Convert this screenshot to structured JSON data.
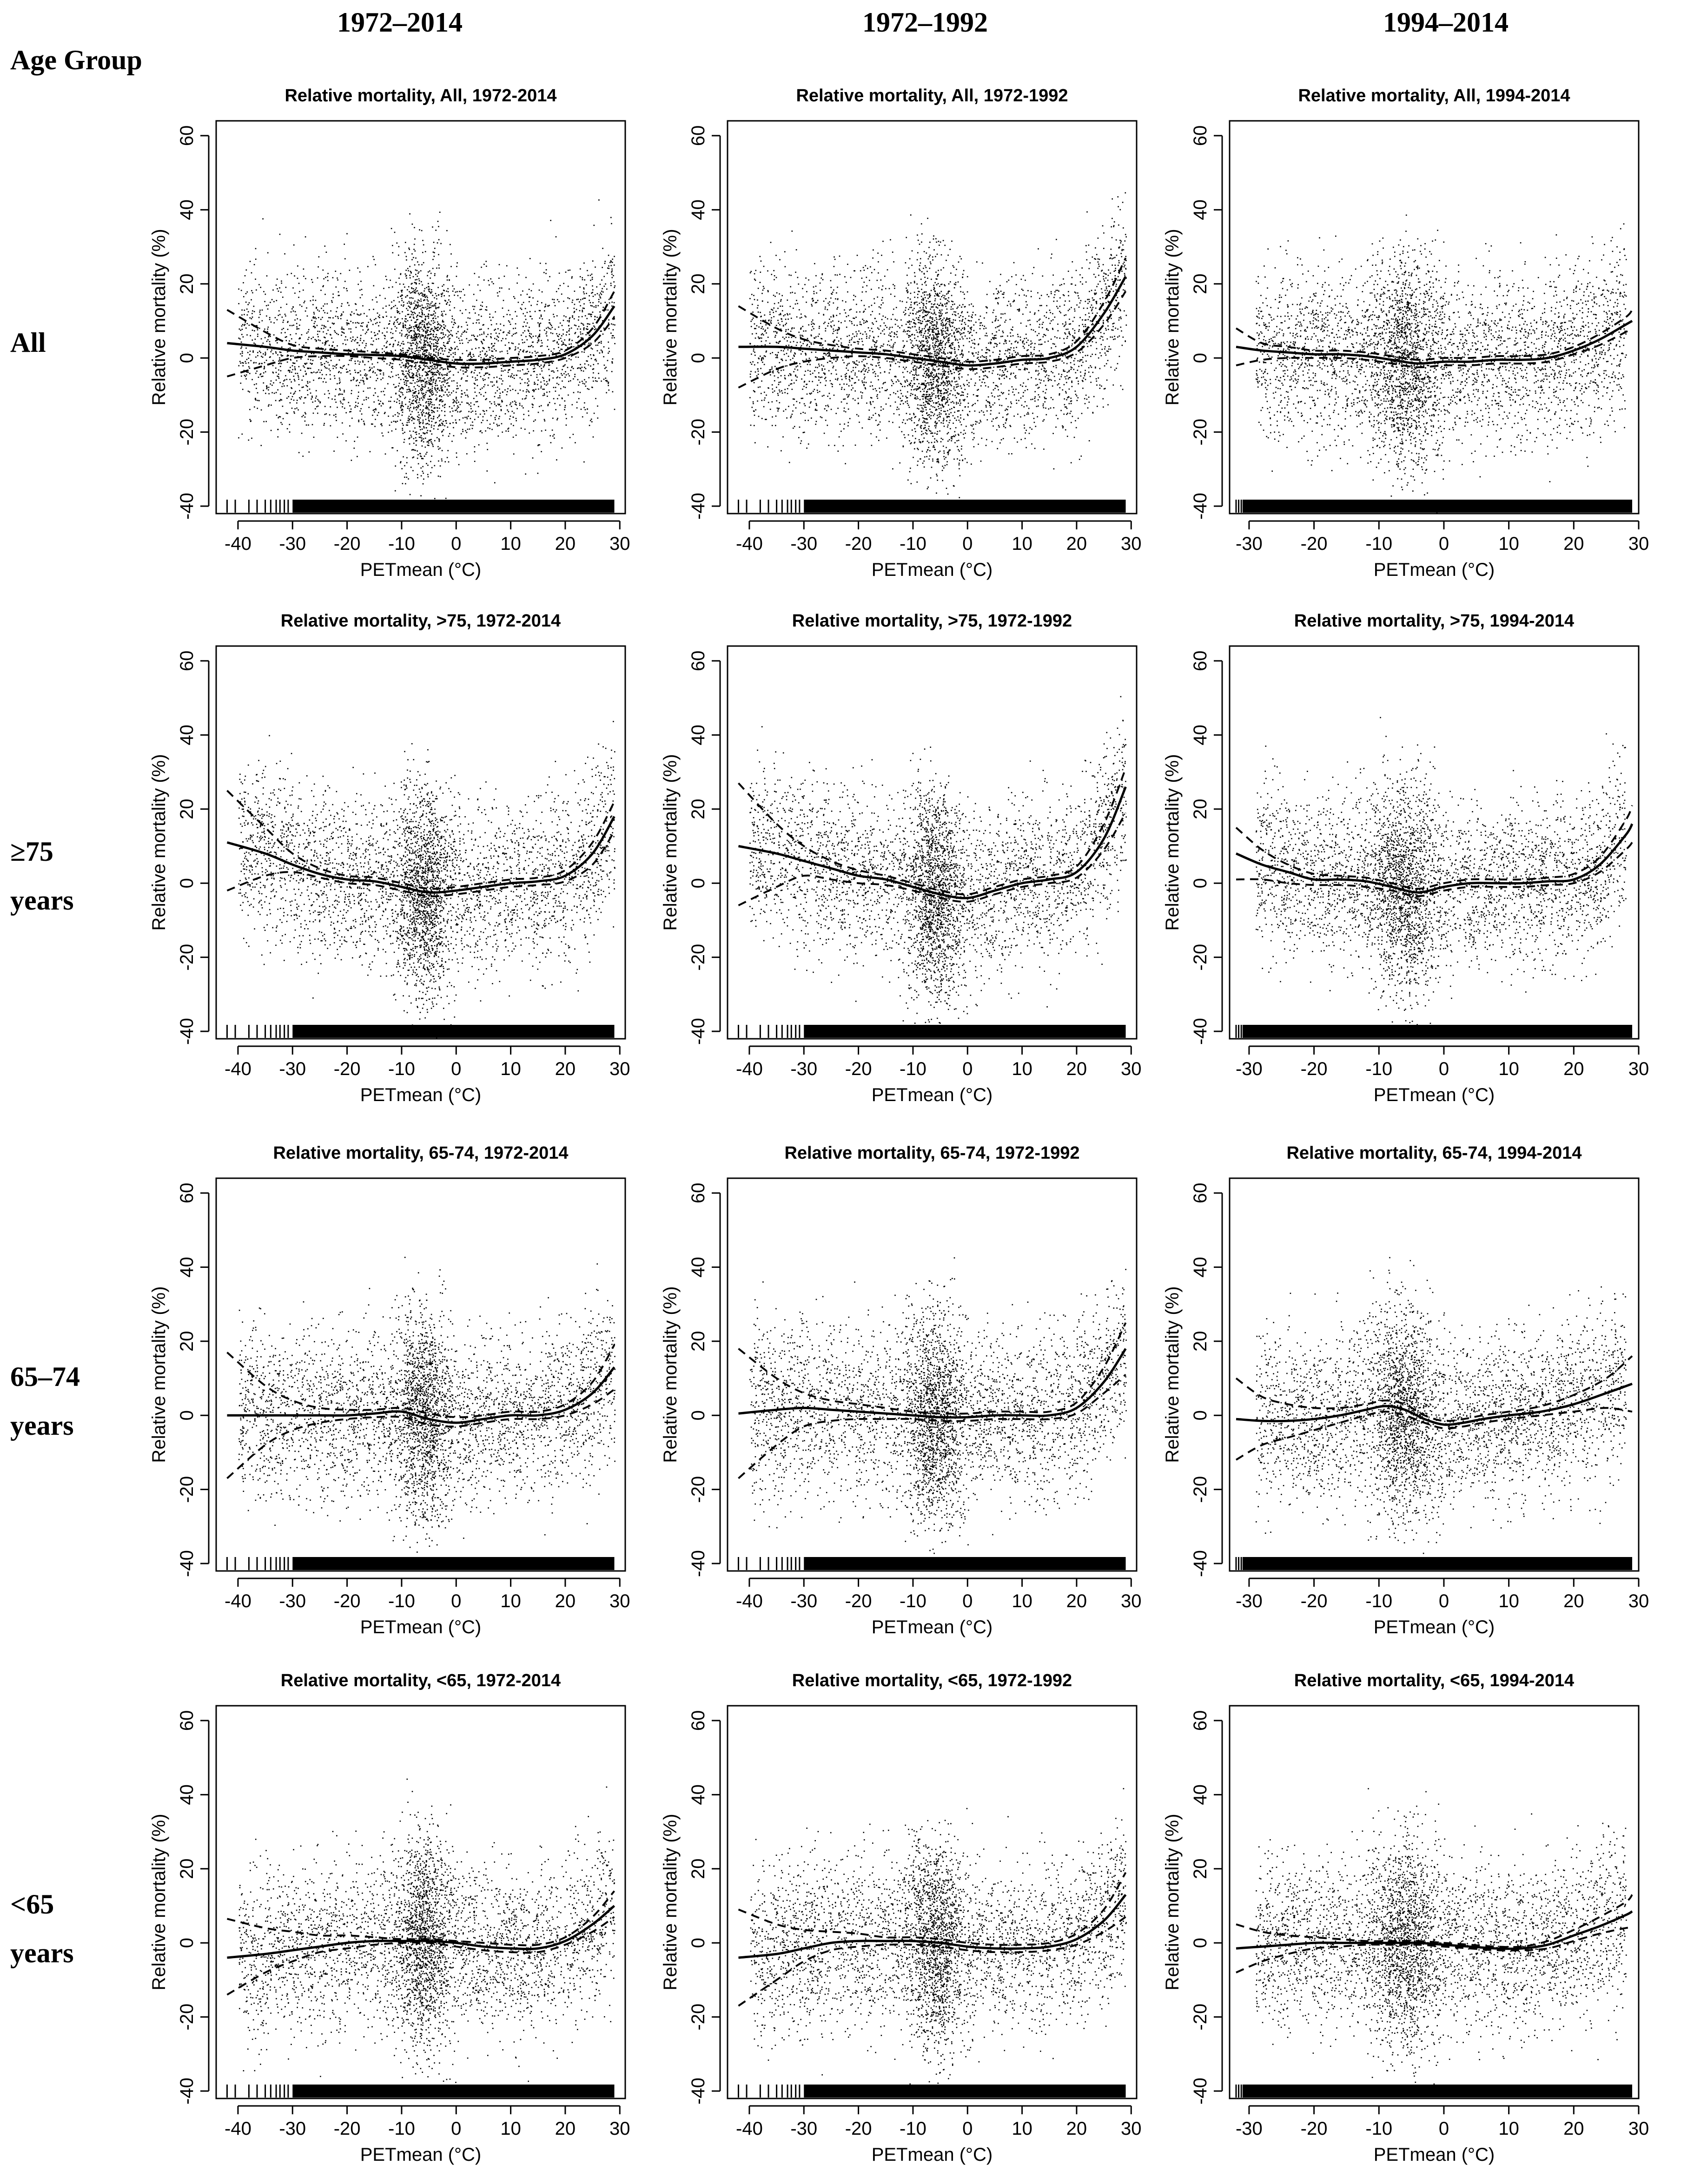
{
  "header": {
    "corner_label": "Age Group",
    "column_titles": [
      "1972–2014",
      "1972–1992",
      "1994–2014"
    ]
  },
  "row_labels": [
    [
      "All"
    ],
    [
      "≥75",
      "years"
    ],
    [
      "65–74",
      "years"
    ],
    [
      "<65",
      "years"
    ]
  ],
  "style": {
    "point_color": "#000000",
    "line_color": "#000000",
    "background": "#ffffff"
  },
  "chart_data": [
    {
      "type": "scatter",
      "title": "Relative mortality, All, 1972-2014",
      "xlabel": "PETmean (°C)",
      "ylabel": "Relative mortality (%)",
      "xlim": [
        -44,
        31
      ],
      "ylim": [
        -42,
        64
      ],
      "xticks": [
        -40,
        -30,
        -20,
        -10,
        0,
        10,
        20,
        30
      ],
      "yticks": [
        -40,
        -20,
        0,
        20,
        40,
        60
      ],
      "x": [
        -42,
        -35,
        -30,
        -25,
        -20,
        -15,
        -10,
        -5,
        0,
        5,
        10,
        15,
        20,
        25,
        29
      ],
      "fit": [
        4,
        3,
        2,
        1.5,
        1,
        0.8,
        0.5,
        -0.5,
        -1.5,
        -1.5,
        -1,
        -0.5,
        1,
        6,
        14
      ],
      "lower": [
        -5,
        -2,
        0,
        0.5,
        0.5,
        0,
        -0.5,
        -1.5,
        -2.5,
        -2.5,
        -2,
        -1.5,
        0,
        4,
        11
      ],
      "upper": [
        13,
        7,
        3.5,
        2.5,
        2,
        1.5,
        1,
        0,
        -0.5,
        -0.5,
        0,
        0.5,
        2,
        8,
        18
      ]
    },
    {
      "type": "scatter",
      "title": "Relative mortality, All, 1972-1992",
      "xlabel": "PETmean (°C)",
      "ylabel": "Relative mortality (%)",
      "xlim": [
        -44,
        31
      ],
      "ylim": [
        -42,
        64
      ],
      "xticks": [
        -40,
        -30,
        -20,
        -10,
        0,
        10,
        20,
        30
      ],
      "yticks": [
        -40,
        -20,
        0,
        20,
        40,
        60
      ],
      "x": [
        -42,
        -35,
        -30,
        -25,
        -20,
        -15,
        -10,
        -5,
        0,
        5,
        10,
        15,
        20,
        25,
        29
      ],
      "fit": [
        3,
        3,
        2.5,
        2,
        1.5,
        1,
        0,
        -1,
        -2,
        -1.5,
        -0.5,
        0,
        3,
        12,
        22
      ],
      "lower": [
        -8,
        -3,
        -1,
        0,
        0.5,
        0,
        -1,
        -2,
        -3,
        -2.5,
        -1.5,
        -1,
        1.5,
        9,
        18
      ],
      "upper": [
        14,
        8,
        5,
        3.5,
        2.5,
        2,
        1,
        0,
        -1,
        -0.5,
        0.5,
        1,
        4.5,
        15,
        27
      ]
    },
    {
      "type": "scatter",
      "title": "Relative mortality, All, 1994-2014",
      "xlabel": "PETmean (°C)",
      "ylabel": "Relative mortality (%)",
      "xlim": [
        -33,
        30
      ],
      "ylim": [
        -42,
        64
      ],
      "xticks": [
        -30,
        -20,
        -10,
        0,
        10,
        20,
        30
      ],
      "yticks": [
        -40,
        -20,
        0,
        20,
        40,
        60
      ],
      "x": [
        -32,
        -28,
        -24,
        -20,
        -16,
        -12,
        -8,
        -4,
        0,
        4,
        8,
        12,
        16,
        20,
        24,
        28,
        29
      ],
      "fit": [
        3,
        2,
        1.5,
        1,
        1,
        0.5,
        -0.5,
        -1.5,
        -1,
        -1,
        -0.5,
        -0.5,
        0,
        2,
        5,
        9,
        10
      ],
      "lower": [
        -2,
        -0.5,
        0,
        0,
        0,
        -0.5,
        -1.5,
        -2.5,
        -2,
        -2,
        -1.5,
        -1.5,
        -1,
        1,
        3.5,
        7,
        8
      ],
      "upper": [
        8,
        4,
        3,
        2,
        2,
        1.5,
        0.5,
        -0.5,
        0,
        0,
        0.5,
        0.5,
        1,
        3,
        6.5,
        11,
        13
      ]
    },
    {
      "type": "scatter",
      "title": "Relative mortality, >75, 1972-2014",
      "xlabel": "PETmean (°C)",
      "ylabel": "Relative mortality (%)",
      "xlim": [
        -44,
        31
      ],
      "ylim": [
        -42,
        64
      ],
      "xticks": [
        -40,
        -30,
        -20,
        -10,
        0,
        10,
        20,
        30
      ],
      "yticks": [
        -40,
        -20,
        0,
        20,
        40,
        60
      ],
      "x": [
        -42,
        -35,
        -30,
        -25,
        -20,
        -15,
        -10,
        -5,
        0,
        5,
        10,
        15,
        20,
        25,
        29
      ],
      "fit": [
        11,
        8,
        5,
        2.5,
        1,
        0.5,
        -1,
        -2.5,
        -2,
        -1,
        0,
        0.5,
        2,
        8,
        18
      ],
      "lower": [
        -2,
        2,
        3,
        1.5,
        0,
        -0.5,
        -2,
        -3.5,
        -3,
        -2,
        -1,
        -0.5,
        0.5,
        5,
        14
      ],
      "upper": [
        25,
        15,
        8,
        4,
        2,
        1.5,
        0,
        -1.5,
        -1,
        0,
        1,
        1.5,
        3.5,
        11,
        22
      ]
    },
    {
      "type": "scatter",
      "title": "Relative mortality, >75, 1972-1992",
      "xlabel": "PETmean (°C)",
      "ylabel": "Relative mortality (%)",
      "xlim": [
        -44,
        31
      ],
      "ylim": [
        -42,
        64
      ],
      "xticks": [
        -40,
        -30,
        -20,
        -10,
        0,
        10,
        20,
        30
      ],
      "yticks": [
        -40,
        -20,
        0,
        20,
        40,
        60
      ],
      "x": [
        -42,
        -35,
        -30,
        -25,
        -20,
        -15,
        -10,
        -5,
        0,
        5,
        10,
        15,
        20,
        25,
        29
      ],
      "fit": [
        10,
        8,
        6,
        4,
        2,
        1,
        -1,
        -3,
        -4,
        -2,
        0,
        1,
        3,
        12,
        26
      ],
      "lower": [
        -6,
        -1,
        2,
        1,
        0,
        -0.5,
        -2,
        -4,
        -5,
        -3,
        -1,
        0,
        1.5,
        9,
        19
      ],
      "upper": [
        27,
        16,
        10,
        6,
        3.5,
        2,
        0,
        -2,
        -3,
        -1,
        1,
        2,
        4.5,
        16,
        31
      ]
    },
    {
      "type": "scatter",
      "title": "Relative mortality, >75, 1994-2014",
      "xlabel": "PETmean (°C)",
      "ylabel": "Relative mortality (%)",
      "xlim": [
        -33,
        30
      ],
      "ylim": [
        -42,
        64
      ],
      "xticks": [
        -30,
        -20,
        -10,
        0,
        10,
        20,
        30
      ],
      "yticks": [
        -40,
        -20,
        0,
        20,
        40,
        60
      ],
      "x": [
        -32,
        -28,
        -24,
        -20,
        -16,
        -12,
        -8,
        -4,
        0,
        4,
        8,
        12,
        16,
        20,
        24,
        28,
        29
      ],
      "fit": [
        8,
        5,
        3,
        1,
        1,
        0.5,
        -1,
        -2.5,
        -1,
        0,
        0,
        0,
        0.5,
        1,
        5,
        13,
        16
      ],
      "lower": [
        1,
        1,
        0,
        -0.5,
        -0.5,
        -1,
        -2,
        -3.5,
        -2,
        -1,
        -1,
        -1,
        -0.5,
        0,
        3,
        9,
        11
      ],
      "upper": [
        15,
        9,
        5,
        2.5,
        2,
        1.5,
        0,
        -1.5,
        0,
        1,
        1,
        1,
        1.5,
        2.5,
        7,
        17,
        21
      ]
    },
    {
      "type": "scatter",
      "title": "Relative mortality, 65-74, 1972-2014",
      "xlabel": "PETmean (°C)",
      "ylabel": "Relative mortality (%)",
      "xlim": [
        -44,
        31
      ],
      "ylim": [
        -42,
        64
      ],
      "xticks": [
        -40,
        -30,
        -20,
        -10,
        0,
        10,
        20,
        30
      ],
      "yticks": [
        -40,
        -20,
        0,
        20,
        40,
        60
      ],
      "x": [
        -42,
        -35,
        -30,
        -25,
        -20,
        -15,
        -10,
        -5,
        0,
        5,
        10,
        15,
        20,
        25,
        29
      ],
      "fit": [
        0,
        0,
        0,
        0,
        0,
        0.5,
        1,
        -1,
        -2,
        -1,
        0,
        0,
        1.5,
        6,
        13
      ],
      "lower": [
        -17,
        -8,
        -4,
        -2,
        -1,
        -0.5,
        -0.5,
        -2.5,
        -3,
        -2,
        -1,
        -1,
        0,
        3,
        7
      ],
      "upper": [
        17,
        8,
        4,
        2,
        1.5,
        1.5,
        2,
        0.5,
        -0.5,
        0,
        1,
        1,
        3,
        9,
        19
      ]
    },
    {
      "type": "scatter",
      "title": "Relative mortality, 65-74, 1972-1992",
      "xlabel": "PETmean (°C)",
      "ylabel": "Relative mortality (%)",
      "xlim": [
        -44,
        31
      ],
      "ylim": [
        -42,
        64
      ],
      "xticks": [
        -40,
        -30,
        -20,
        -10,
        0,
        10,
        20,
        30
      ],
      "yticks": [
        -40,
        -20,
        0,
        20,
        40,
        60
      ],
      "x": [
        -42,
        -35,
        -30,
        -25,
        -20,
        -15,
        -10,
        -5,
        0,
        5,
        10,
        15,
        20,
        25,
        29
      ],
      "fit": [
        0.5,
        1.5,
        2,
        1.5,
        1,
        0.5,
        0,
        -0.5,
        -0.5,
        0,
        0,
        0,
        2,
        9,
        18
      ],
      "lower": [
        -17,
        -8,
        -3,
        -1.5,
        -1,
        -1,
        -1,
        -1.5,
        -1.5,
        -1,
        -1,
        -1,
        0.5,
        6,
        11
      ],
      "upper": [
        18,
        10,
        6,
        4,
        3,
        2,
        1,
        0.5,
        0.5,
        1,
        1,
        1,
        3.5,
        13,
        25
      ]
    },
    {
      "type": "scatter",
      "title": "Relative mortality, 65-74, 1994-2014",
      "xlabel": "PETmean (°C)",
      "ylabel": "Relative mortality (%)",
      "xlim": [
        -33,
        30
      ],
      "ylim": [
        -42,
        64
      ],
      "xticks": [
        -30,
        -20,
        -10,
        0,
        10,
        20,
        30
      ],
      "yticks": [
        -40,
        -20,
        0,
        20,
        40,
        60
      ],
      "x": [
        -32,
        -28,
        -24,
        -20,
        -16,
        -12,
        -9,
        -6,
        -3,
        0,
        3,
        6,
        10,
        15,
        20,
        25,
        29
      ],
      "fit": [
        -1,
        -1.5,
        -1.5,
        -1,
        0,
        1.5,
        2.5,
        1.5,
        -1,
        -2.5,
        -2,
        -1,
        0,
        1,
        3,
        6,
        8.5
      ],
      "lower": [
        -12,
        -8,
        -6,
        -4,
        -2,
        0,
        1,
        0,
        -2,
        -3.5,
        -3,
        -2,
        -1,
        0,
        1,
        2,
        1
      ],
      "upper": [
        10,
        5,
        3,
        2,
        2,
        3,
        4,
        3,
        0,
        -1.5,
        -1,
        0,
        1,
        2.5,
        5.5,
        10,
        16
      ]
    },
    {
      "type": "scatter",
      "title": "Relative mortality, <65, 1972-2014",
      "xlabel": "PETmean (°C)",
      "ylabel": "Relative mortality (%)",
      "xlim": [
        -44,
        31
      ],
      "ylim": [
        -42,
        64
      ],
      "xticks": [
        -40,
        -30,
        -20,
        -10,
        0,
        10,
        20,
        30
      ],
      "yticks": [
        -40,
        -20,
        0,
        20,
        40,
        60
      ],
      "x": [
        -42,
        -35,
        -30,
        -25,
        -20,
        -15,
        -10,
        -5,
        0,
        5,
        10,
        15,
        20,
        25,
        29
      ],
      "fit": [
        -4,
        -3,
        -2,
        -1,
        0,
        0.5,
        0.5,
        0.5,
        0,
        -1,
        -1.5,
        -1.5,
        0.5,
        5,
        10
      ],
      "lower": [
        -14,
        -8,
        -5,
        -2.5,
        -1.5,
        -0.5,
        0,
        0,
        -1,
        -2,
        -2.5,
        -2.5,
        -0.5,
        3,
        7
      ],
      "upper": [
        6.5,
        4,
        3,
        2,
        2,
        1.5,
        1,
        1,
        0.5,
        0,
        -0.5,
        -0.5,
        1.5,
        7,
        14
      ]
    },
    {
      "type": "scatter",
      "title": "Relative mortality, <65, 1972-1992",
      "xlabel": "PETmean (°C)",
      "ylabel": "Relative mortality (%)",
      "xlim": [
        -44,
        31
      ],
      "ylim": [
        -42,
        64
      ],
      "xticks": [
        -40,
        -30,
        -20,
        -10,
        0,
        10,
        20,
        30
      ],
      "yticks": [
        -40,
        -20,
        0,
        20,
        40,
        60
      ],
      "x": [
        -42,
        -35,
        -30,
        -25,
        -20,
        -15,
        -10,
        -5,
        0,
        5,
        10,
        15,
        20,
        25,
        29
      ],
      "fit": [
        -4,
        -3,
        -1.5,
        0,
        0.5,
        0.5,
        0.5,
        0,
        -1,
        -1.5,
        -1.5,
        -1,
        1,
        6,
        13
      ],
      "lower": [
        -17,
        -10,
        -5,
        -2,
        -1,
        -0.5,
        -0.5,
        -1,
        -2,
        -2.5,
        -2.5,
        -2,
        -0.5,
        3,
        7
      ],
      "upper": [
        9,
        5,
        3.5,
        3,
        2.5,
        1.5,
        1.5,
        1,
        0,
        -0.5,
        -0.5,
        0,
        2.5,
        9,
        19
      ]
    },
    {
      "type": "scatter",
      "title": "Relative mortality, <65, 1994-2014",
      "xlabel": "PETmean (°C)",
      "ylabel": "Relative mortality (%)",
      "xlim": [
        -33,
        30
      ],
      "ylim": [
        -42,
        64
      ],
      "xticks": [
        -30,
        -20,
        -10,
        0,
        10,
        20,
        30
      ],
      "yticks": [
        -40,
        -20,
        0,
        20,
        40,
        60
      ],
      "x": [
        -32,
        -28,
        -24,
        -20,
        -16,
        -12,
        -8,
        -4,
        0,
        4,
        8,
        12,
        16,
        20,
        24,
        28,
        29
      ],
      "fit": [
        -1.5,
        -1,
        -0.5,
        0,
        0,
        0,
        0,
        0,
        -0.5,
        -1,
        -1.5,
        -1.5,
        -0.5,
        2,
        4.5,
        7.5,
        8.5
      ],
      "lower": [
        -8,
        -5,
        -3,
        -1.5,
        -1,
        -0.5,
        -0.5,
        -0.5,
        -1,
        -1.5,
        -2,
        -2,
        -1.5,
        0.5,
        2.5,
        4,
        4
      ],
      "upper": [
        5,
        3,
        2,
        1.5,
        1,
        0.5,
        0.5,
        0.5,
        0,
        -0.5,
        -1,
        -1,
        0.5,
        3.5,
        7,
        11,
        13
      ]
    }
  ]
}
